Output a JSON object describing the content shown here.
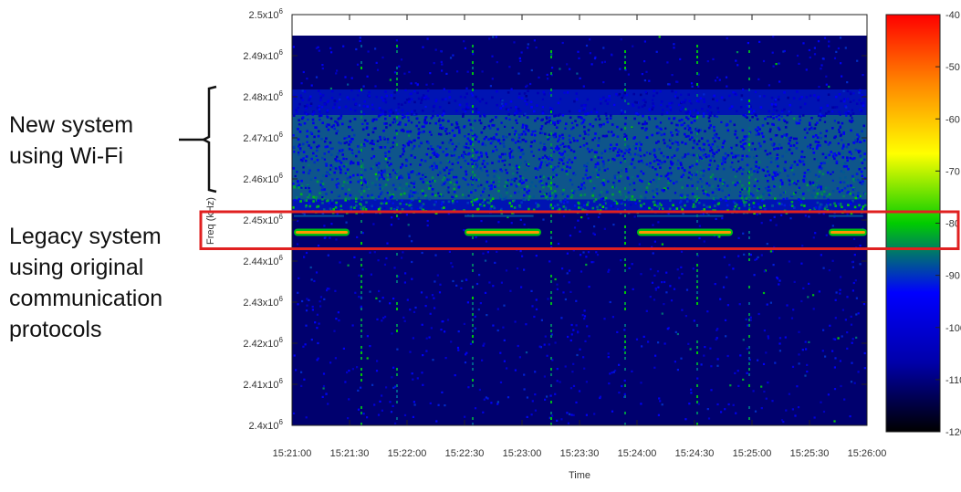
{
  "annotations": {
    "wifi_system": [
      "New system",
      "using Wi-Fi"
    ],
    "legacy_system": [
      "Legacy system",
      "using original",
      "communication",
      "protocols"
    ]
  },
  "chart_data": {
    "type": "heatmap",
    "title": "",
    "xlabel": "Time",
    "ylabel": "Freq (kHz)",
    "x_ticks": [
      "15:21:00",
      "15:21:30",
      "15:22:00",
      "15:22:30",
      "15:23:00",
      "15:23:30",
      "15:24:00",
      "15:24:30",
      "15:25:00",
      "15:25:30",
      "15:26:00"
    ],
    "y_ticks": [
      {
        "value": 2400000,
        "mant": "2.4x10",
        "exp": "6"
      },
      {
        "value": 2410000,
        "mant": "2.41x10",
        "exp": "6"
      },
      {
        "value": 2420000,
        "mant": "2.42x10",
        "exp": "6"
      },
      {
        "value": 2430000,
        "mant": "2.43x10",
        "exp": "6"
      },
      {
        "value": 2440000,
        "mant": "2.44x10",
        "exp": "6"
      },
      {
        "value": 2450000,
        "mant": "2.45x10",
        "exp": "6"
      },
      {
        "value": 2460000,
        "mant": "2.46x10",
        "exp": "6"
      },
      {
        "value": 2470000,
        "mant": "2.47x10",
        "exp": "6"
      },
      {
        "value": 2480000,
        "mant": "2.48x10",
        "exp": "6"
      },
      {
        "value": 2490000,
        "mant": "2.49x10",
        "exp": "6"
      },
      {
        "value": 2500000,
        "mant": "2.5x10",
        "exp": "6"
      }
    ],
    "ylim": [
      2400000,
      2500000
    ],
    "xlim": [
      "15:21:00",
      "15:26:00"
    ],
    "colorbar": {
      "ticks": [
        "-40",
        "-50",
        "-60",
        "-70",
        "-80",
        "-90",
        "-100",
        "-110",
        "-120"
      ],
      "range": [
        -120,
        -40
      ],
      "colors": [
        "#000000",
        "#0000aa",
        "#0000ff",
        "#00cc00",
        "#ffff00",
        "#ff8800",
        "#ff0000"
      ]
    },
    "regions": {
      "wifi_band": {
        "freq_range": [
          2455000,
          2480000
        ],
        "level_dbm": -85
      },
      "legacy_channel": {
        "freq_khz": 2447000,
        "level_dbm": -75,
        "bursts": [
          [
            "15:21:00",
            "15:21:30"
          ],
          [
            "15:22:30",
            "15:23:10"
          ],
          [
            "15:24:00",
            "15:24:50"
          ],
          [
            "15:25:40",
            "15:26:00"
          ]
        ]
      }
    },
    "highlight_box": {
      "color": "#e02020",
      "freq_range": [
        2443000,
        2452000
      ]
    },
    "grid": false,
    "legend": "right"
  }
}
